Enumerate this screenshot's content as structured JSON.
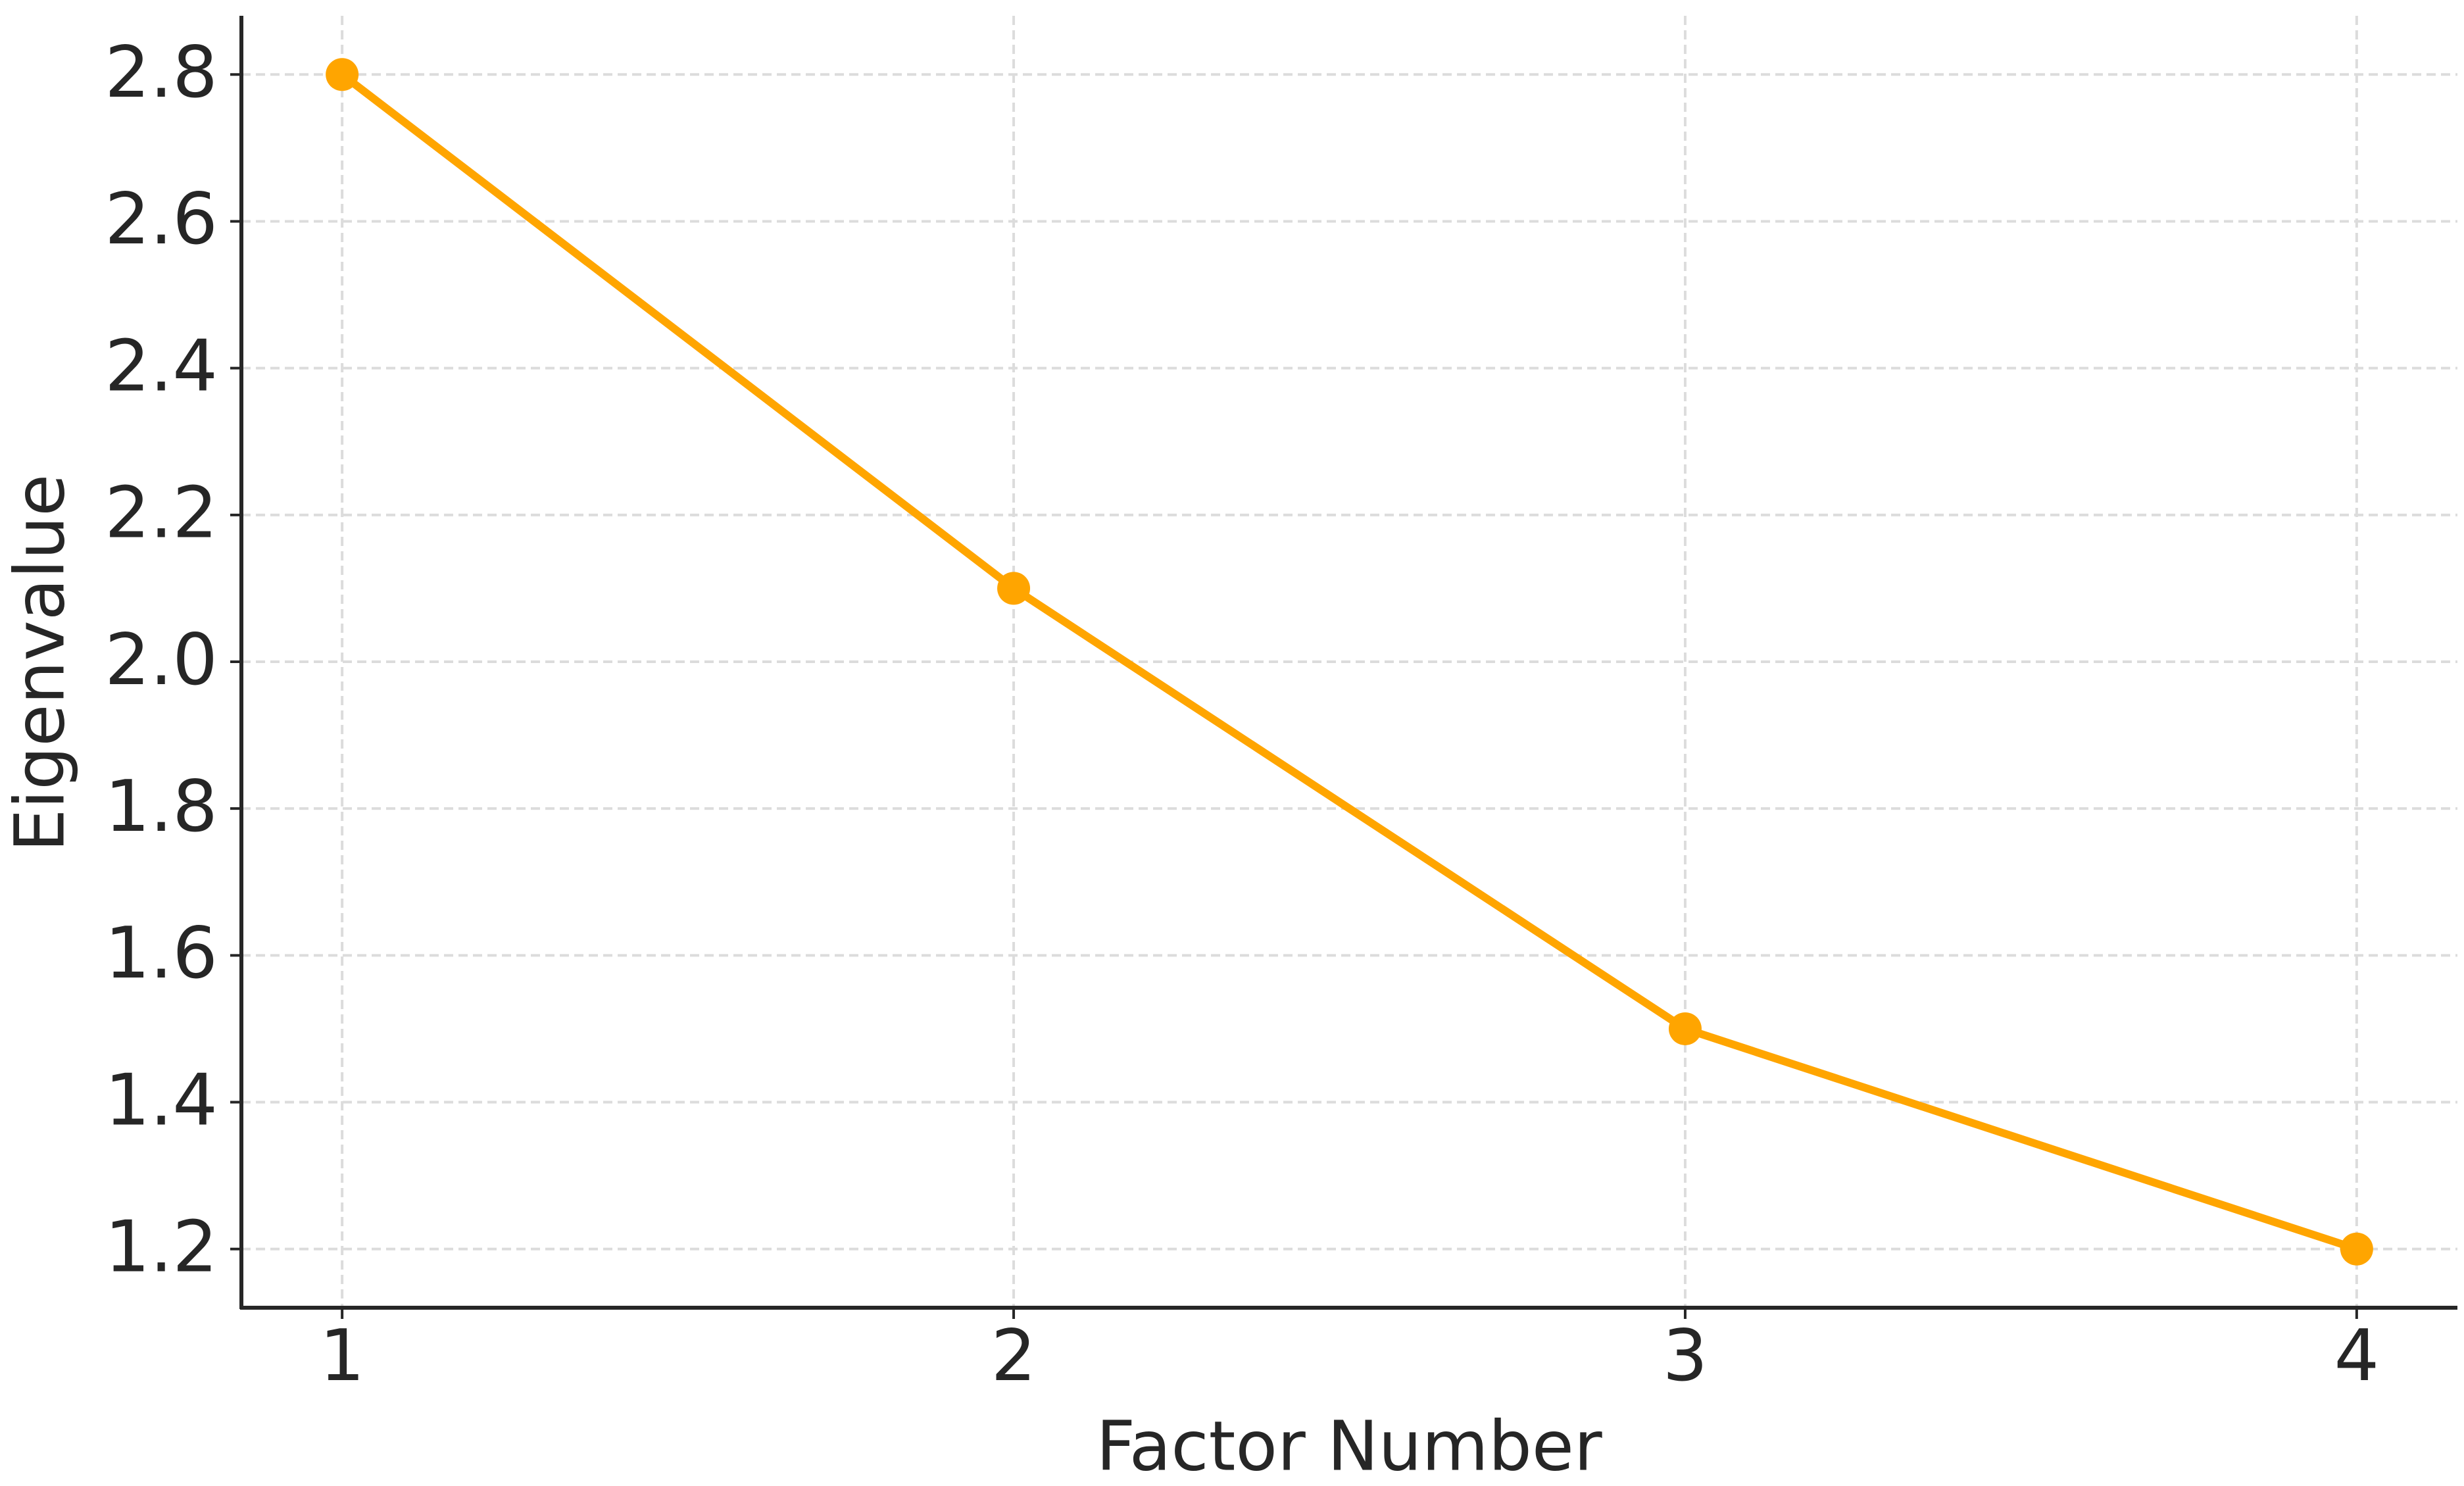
{
  "chart_data": {
    "type": "line",
    "x_label": "Factor Number",
    "y_label": "Eigenvalue",
    "x": [
      1,
      2,
      3,
      4
    ],
    "series": [
      {
        "name": "Eigenvalue",
        "color": "#ffa500",
        "values": [
          2.8,
          2.1,
          1.5,
          1.2
        ]
      }
    ],
    "xlim": [
      0.85,
      4.15
    ],
    "xticks": [
      1,
      2,
      3,
      4
    ],
    "ylim": [
      1.12,
      2.88
    ],
    "yticks": [
      1.2,
      1.4,
      1.6,
      1.8,
      {
        "value": 2,
        "label": "2.0"
      },
      2.2,
      2.4,
      2.6,
      2.8
    ],
    "grid": true,
    "legend": false
  }
}
